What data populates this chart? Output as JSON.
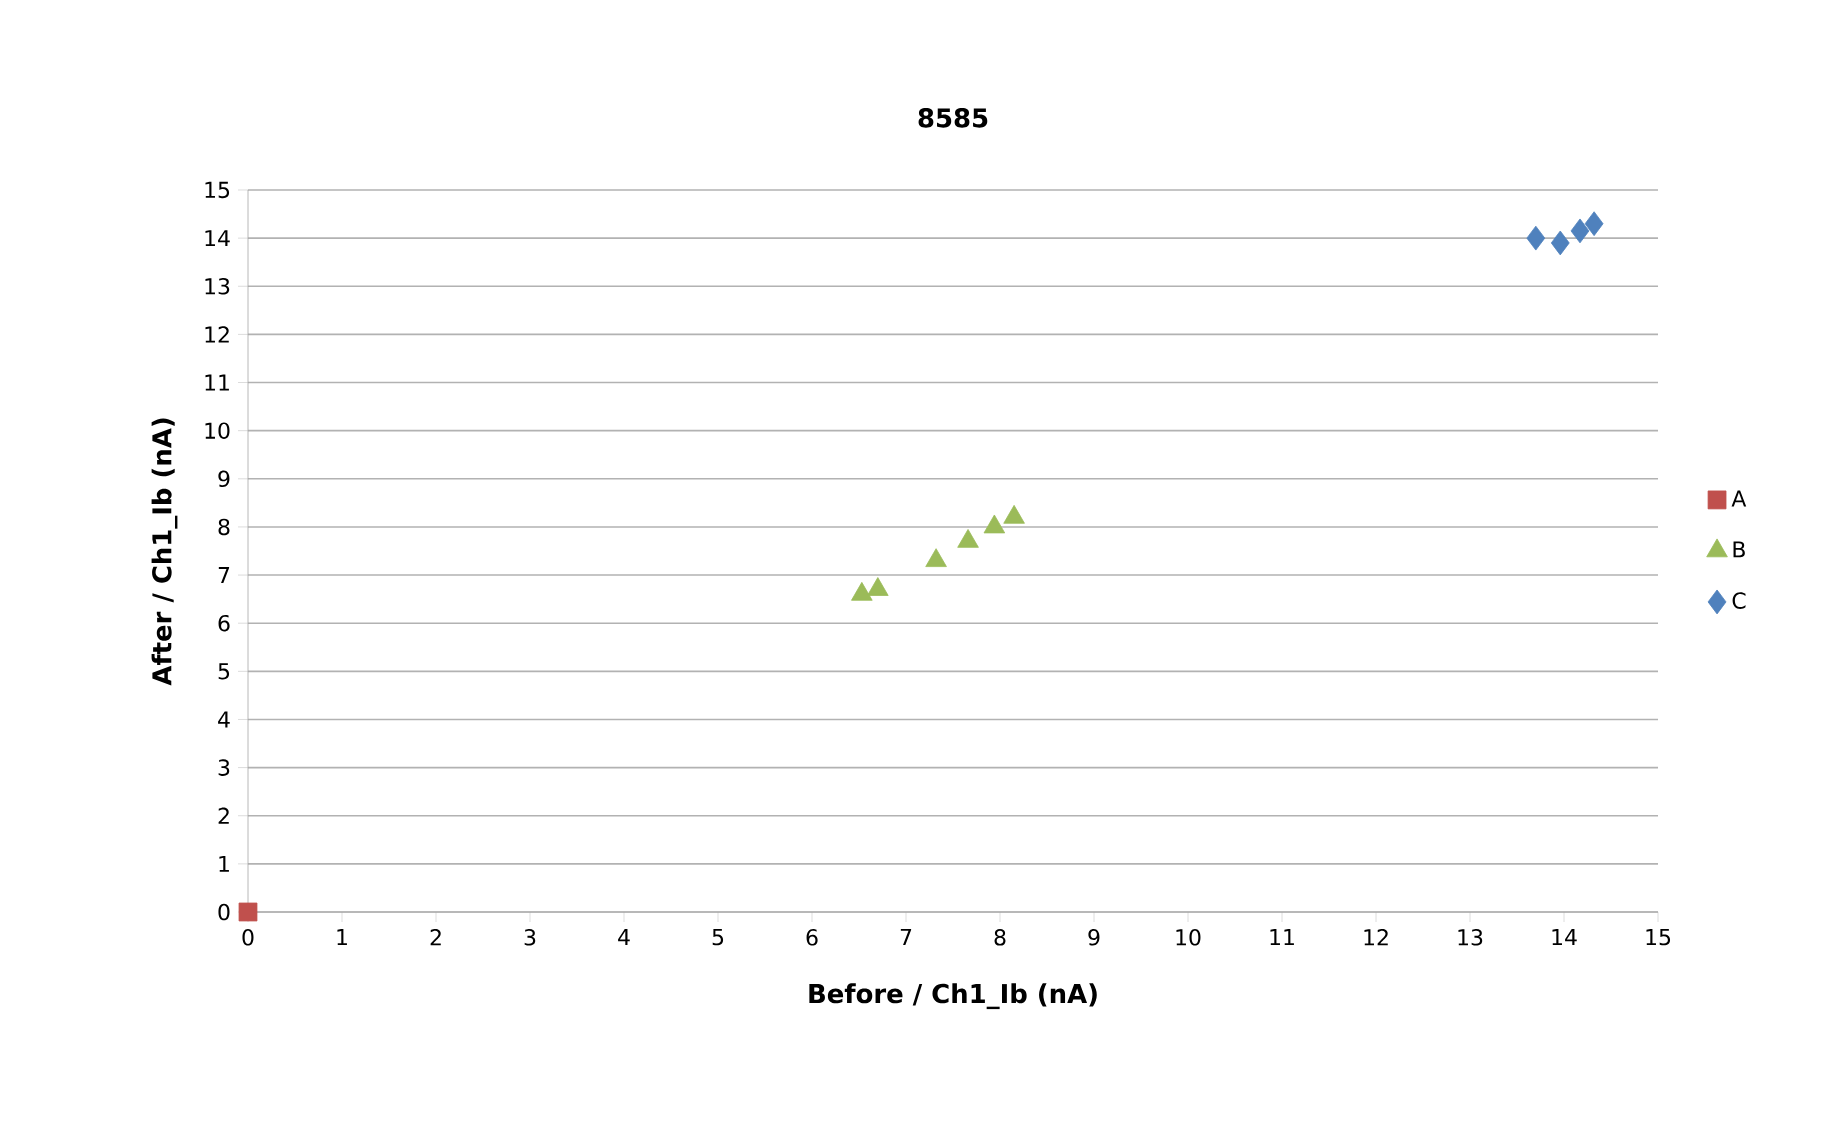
{
  "chart_data": {
    "type": "scatter",
    "title": "8585",
    "xlabel": "Before / Ch1_Ib (nA)",
    "ylabel": "After / Ch1_Ib (nA)",
    "xlim": [
      0,
      15
    ],
    "ylim": [
      0,
      15
    ],
    "xticks": [
      0,
      1,
      2,
      3,
      4,
      5,
      6,
      7,
      8,
      9,
      10,
      11,
      12,
      13,
      14,
      15
    ],
    "yticks": [
      0,
      1,
      2,
      3,
      4,
      5,
      6,
      7,
      8,
      9,
      10,
      11,
      12,
      13,
      14,
      15
    ],
    "grid": "y",
    "legend": "right",
    "series": [
      {
        "name": "A",
        "color": "#c0504d",
        "marker": "square",
        "x": [
          0
        ],
        "values": [
          0
        ]
      },
      {
        "name": "B",
        "color": "#9bbb59",
        "marker": "triangle",
        "x": [
          6.53,
          6.7,
          7.32,
          7.66,
          7.94,
          8.15
        ],
        "values": [
          6.6,
          6.7,
          7.3,
          7.7,
          8.0,
          8.2
        ]
      },
      {
        "name": "C",
        "color": "#4f81bd",
        "marker": "diamond",
        "x": [
          13.7,
          13.96,
          14.17,
          14.32
        ],
        "values": [
          14.0,
          13.9,
          14.15,
          14.3
        ]
      }
    ]
  }
}
